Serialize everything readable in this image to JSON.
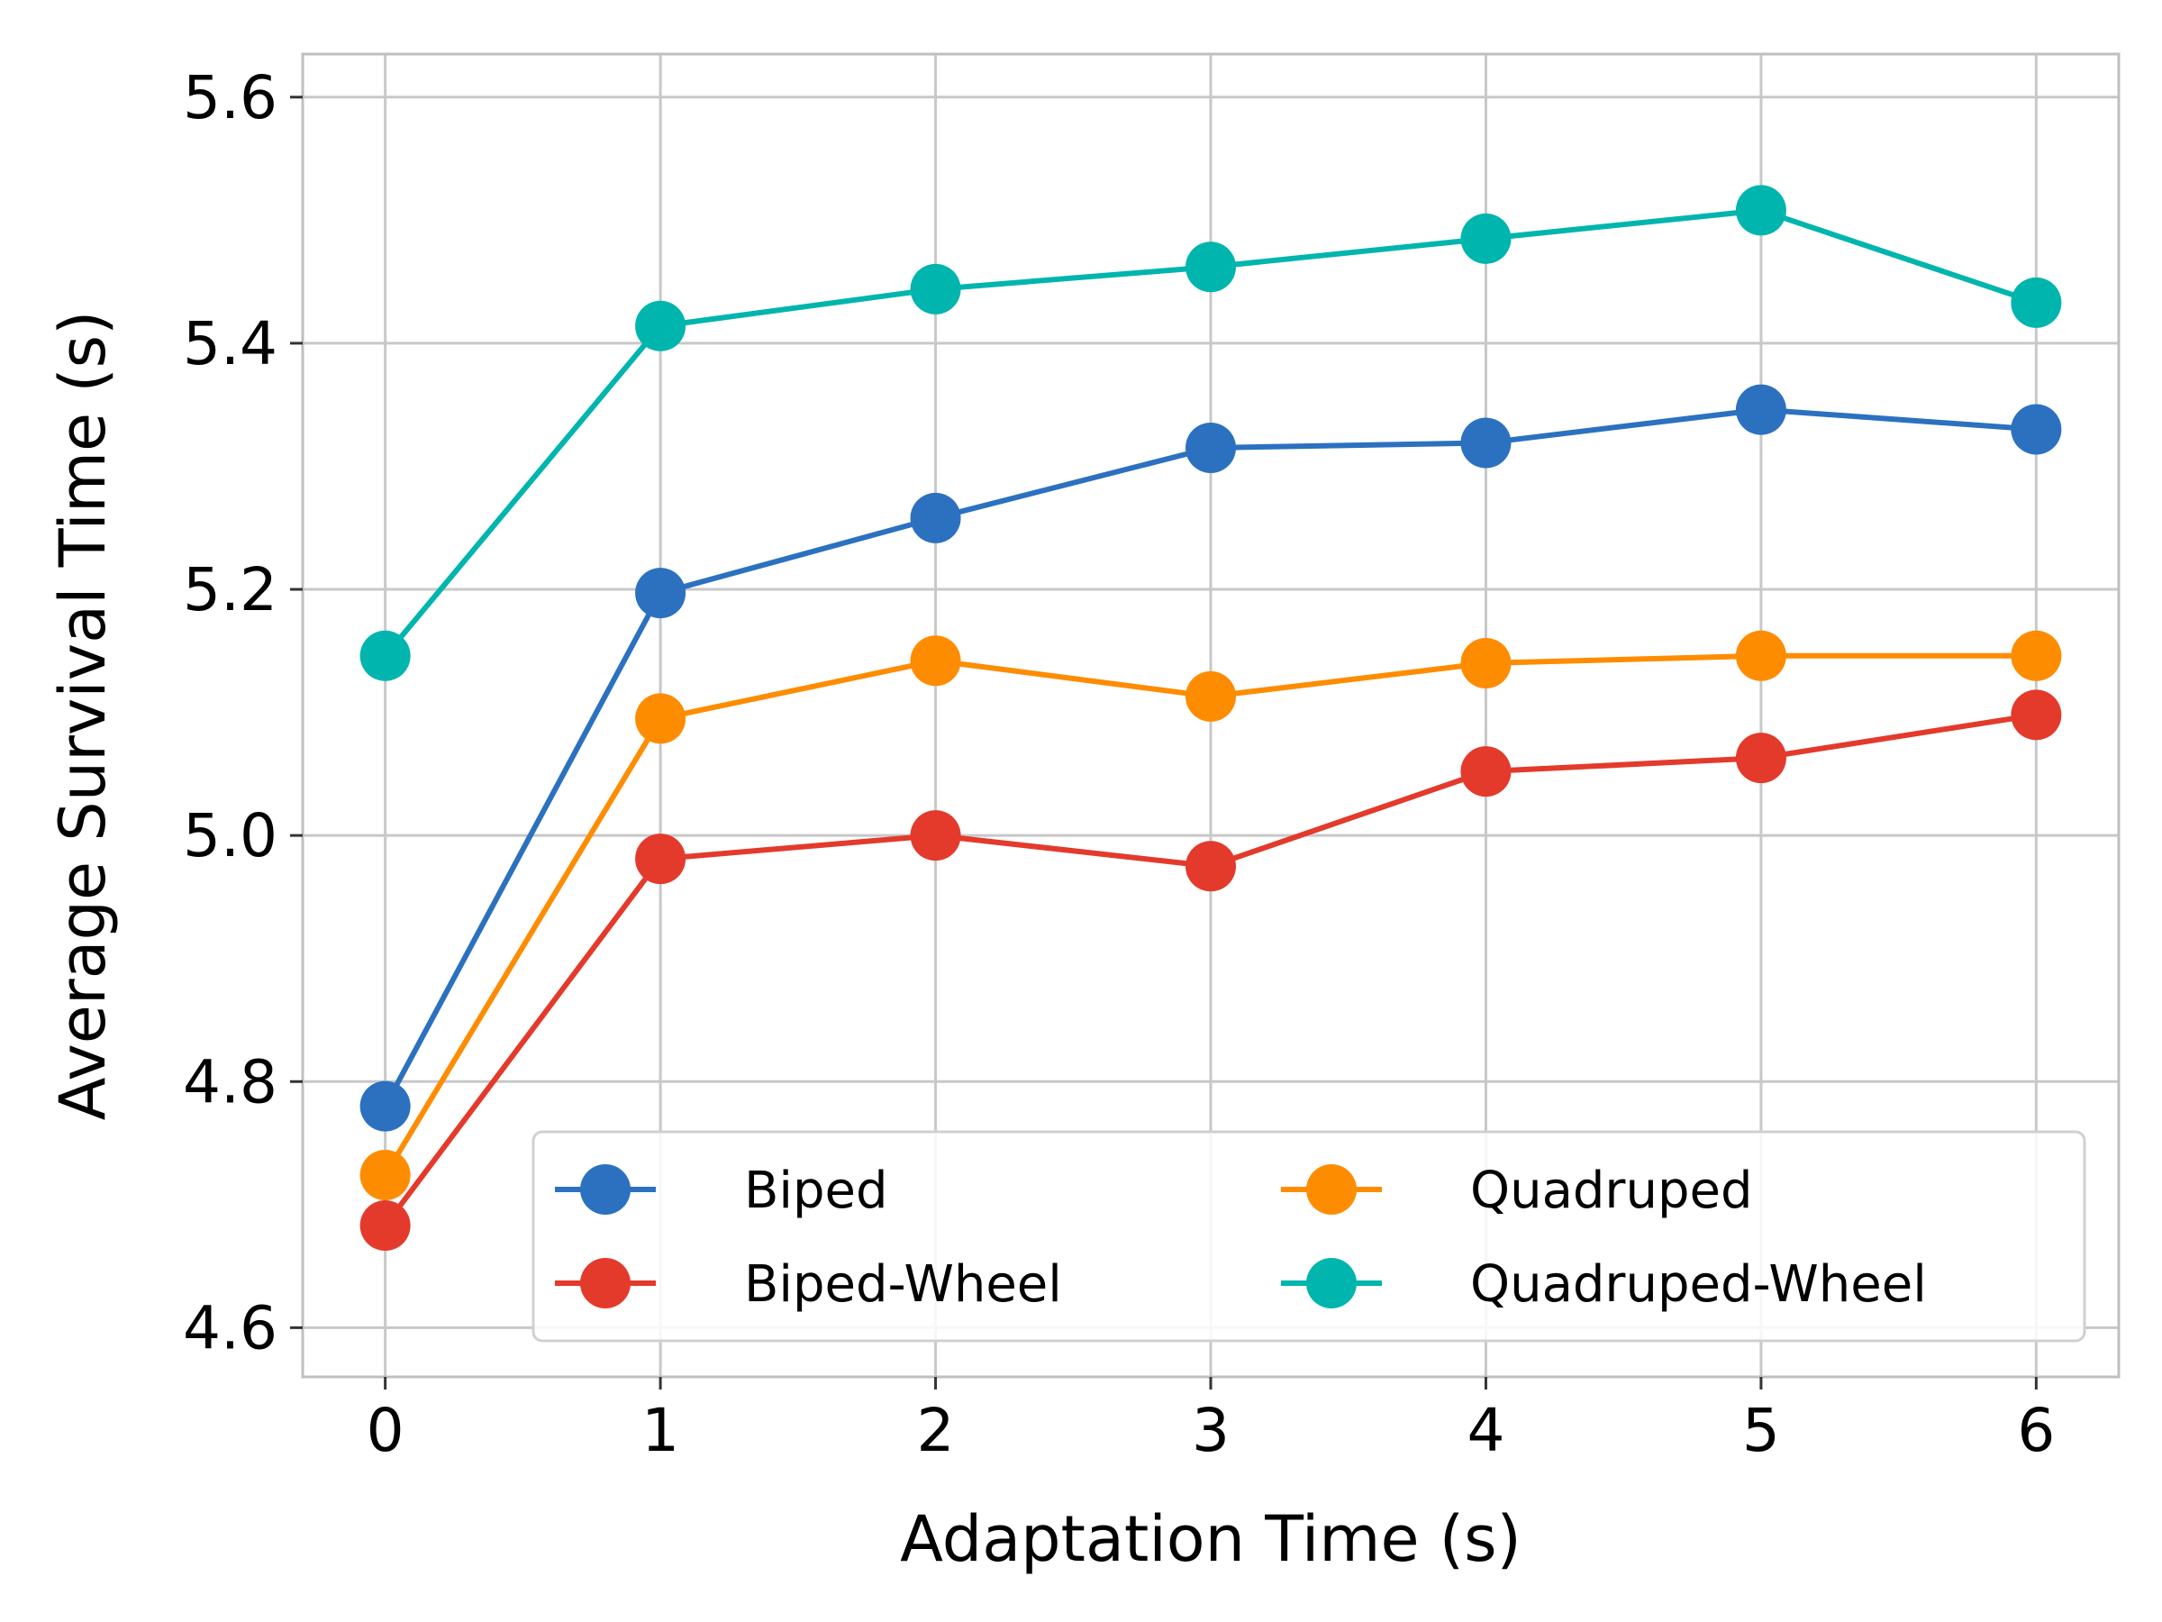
{
  "chart_data": {
    "type": "line",
    "title": "",
    "xlabel": "Adaptation Time (s)",
    "ylabel": "Average Survival Time (s)",
    "x": [
      0,
      1,
      2,
      3,
      4,
      5,
      6
    ],
    "xticks": [
      "0",
      "1",
      "2",
      "3",
      "4",
      "5",
      "6"
    ],
    "yticks": [
      "4.6",
      "4.8",
      "5.0",
      "5.2",
      "5.4",
      "5.6"
    ],
    "xlim": [
      -0.3,
      6.3
    ],
    "ylim": [
      4.56,
      5.635
    ],
    "grid": true,
    "legend_position": "lower-right",
    "series": [
      {
        "name": "Biped",
        "color": "#2b71c0",
        "values": [
          4.78,
          5.197,
          5.258,
          5.315,
          5.319,
          5.346,
          5.33
        ]
      },
      {
        "name": "Biped-Wheel",
        "color": "#e33a2c",
        "values": [
          4.683,
          4.981,
          5.0,
          4.975,
          5.052,
          5.063,
          5.098
        ]
      },
      {
        "name": "Quadruped",
        "color": "#fe8c00",
        "values": [
          4.724,
          5.095,
          5.142,
          5.113,
          5.14,
          5.146,
          5.146
        ]
      },
      {
        "name": "Quadruped-Wheel",
        "color": "#00b5ad",
        "values": [
          5.146,
          5.414,
          5.444,
          5.462,
          5.485,
          5.508,
          5.433
        ]
      }
    ]
  }
}
